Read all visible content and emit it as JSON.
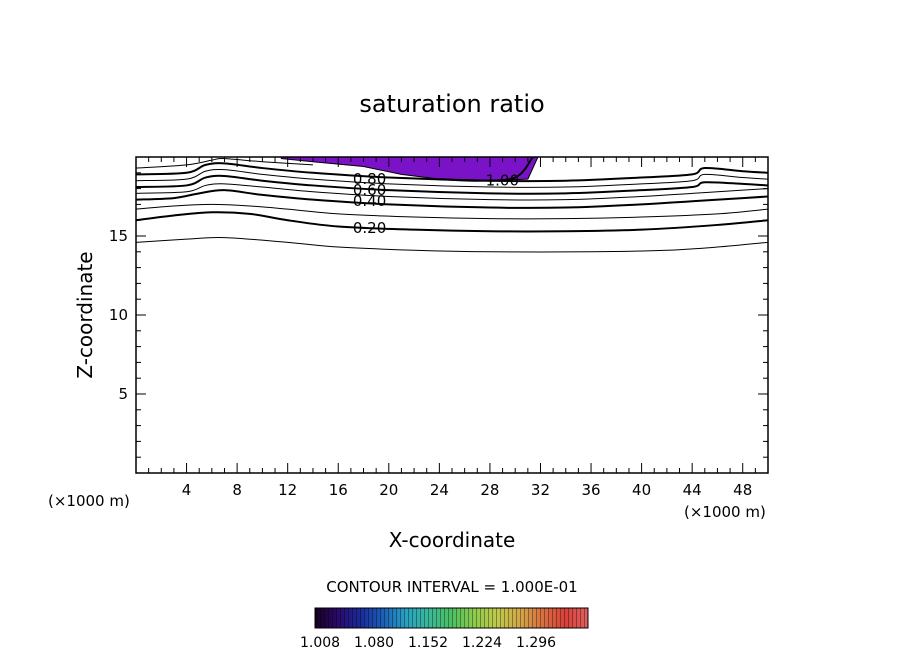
{
  "chart_data": {
    "type": "contour",
    "title": "saturation ratio",
    "xlabel": "X-coordinate",
    "ylabel": "Z-coordinate",
    "x_unit": "(×1000 m)",
    "y_unit": "(×1000 m)",
    "xlim": [
      0,
      50
    ],
    "ylim": [
      0,
      20
    ],
    "x_ticks": [
      4,
      8,
      12,
      16,
      20,
      24,
      28,
      32,
      36,
      40,
      44,
      48
    ],
    "y_ticks": [
      5,
      10,
      15
    ],
    "contour_interval_text": "CONTOUR INTERVAL = 1.000E-01",
    "contour_labels": [
      {
        "text": "0.80",
        "x": 17.0,
        "z": 18.6
      },
      {
        "text": "0.60",
        "x": 17.0,
        "z": 17.9
      },
      {
        "text": "0.40",
        "x": 17.0,
        "z": 17.2
      },
      {
        "text": "0.20",
        "x": 17.0,
        "z": 15.5
      },
      {
        "text": "1.00",
        "x": 27.5,
        "z": 18.5
      }
    ],
    "contours": [
      {
        "level": 0.1,
        "bold": false,
        "points": [
          [
            0,
            14.6
          ],
          [
            4,
            14.8
          ],
          [
            7,
            14.9
          ],
          [
            12,
            14.6
          ],
          [
            16,
            14.3
          ],
          [
            22,
            14.1
          ],
          [
            28,
            14.0
          ],
          [
            36,
            14.0
          ],
          [
            42,
            14.1
          ],
          [
            46,
            14.3
          ],
          [
            50,
            14.6
          ]
        ]
      },
      {
        "level": 0.2,
        "bold": true,
        "points": [
          [
            0,
            16.0
          ],
          [
            3,
            16.3
          ],
          [
            6,
            16.5
          ],
          [
            9,
            16.4
          ],
          [
            12,
            16.0
          ],
          [
            16,
            15.6
          ],
          [
            22,
            15.4
          ],
          [
            28,
            15.3
          ],
          [
            34,
            15.3
          ],
          [
            40,
            15.4
          ],
          [
            46,
            15.7
          ],
          [
            50,
            16.0
          ]
        ]
      },
      {
        "level": 0.3,
        "bold": false,
        "points": [
          [
            0,
            16.7
          ],
          [
            3,
            16.9
          ],
          [
            6,
            17.0
          ],
          [
            9,
            16.9
          ],
          [
            12,
            16.7
          ],
          [
            16,
            16.4
          ],
          [
            22,
            16.2
          ],
          [
            28,
            16.1
          ],
          [
            34,
            16.1
          ],
          [
            40,
            16.2
          ],
          [
            46,
            16.4
          ],
          [
            50,
            16.7
          ]
        ]
      },
      {
        "level": 0.4,
        "bold": true,
        "points": [
          [
            0,
            17.3
          ],
          [
            3,
            17.4
          ],
          [
            5,
            17.7
          ],
          [
            7,
            17.9
          ],
          [
            10,
            17.6
          ],
          [
            14,
            17.3
          ],
          [
            20,
            17.0
          ],
          [
            28,
            16.8
          ],
          [
            34,
            16.8
          ],
          [
            40,
            17.0
          ],
          [
            44,
            17.2
          ],
          [
            48,
            17.4
          ],
          [
            50,
            17.5
          ]
        ]
      },
      {
        "level": 0.5,
        "bold": false,
        "points": [
          [
            0,
            17.7
          ],
          [
            4,
            17.8
          ],
          [
            5.5,
            18.2
          ],
          [
            7,
            18.3
          ],
          [
            10,
            18.1
          ],
          [
            14,
            17.8
          ],
          [
            20,
            17.5
          ],
          [
            28,
            17.3
          ],
          [
            34,
            17.3
          ],
          [
            40,
            17.5
          ],
          [
            44,
            17.7
          ],
          [
            48,
            17.9
          ],
          [
            50,
            18.0
          ]
        ]
      },
      {
        "level": 0.6,
        "bold": true,
        "points": [
          [
            0,
            18.1
          ],
          [
            4,
            18.2
          ],
          [
            5.5,
            18.7
          ],
          [
            7,
            18.8
          ],
          [
            10,
            18.5
          ],
          [
            14,
            18.2
          ],
          [
            20,
            17.9
          ],
          [
            28,
            17.7
          ],
          [
            34,
            17.7
          ],
          [
            40,
            17.9
          ],
          [
            44,
            18.1
          ],
          [
            45,
            18.4
          ],
          [
            48,
            18.3
          ],
          [
            50,
            18.2
          ]
        ]
      },
      {
        "level": 0.7,
        "bold": false,
        "points": [
          [
            0,
            18.5
          ],
          [
            4,
            18.6
          ],
          [
            5.5,
            19.1
          ],
          [
            7,
            19.2
          ],
          [
            10,
            18.9
          ],
          [
            14,
            18.6
          ],
          [
            20,
            18.3
          ],
          [
            28,
            18.1
          ],
          [
            34,
            18.1
          ],
          [
            40,
            18.3
          ],
          [
            44,
            18.5
          ],
          [
            45,
            18.9
          ],
          [
            48,
            18.7
          ],
          [
            50,
            18.6
          ]
        ]
      },
      {
        "level": 0.8,
        "bold": true,
        "points": [
          [
            0,
            18.9
          ],
          [
            4,
            19.0
          ],
          [
            5.5,
            19.5
          ],
          [
            7,
            19.6
          ],
          [
            10,
            19.3
          ],
          [
            14,
            19.0
          ],
          [
            20,
            18.7
          ],
          [
            28,
            18.5
          ],
          [
            34,
            18.5
          ],
          [
            40,
            18.7
          ],
          [
            44,
            18.9
          ],
          [
            45,
            19.3
          ],
          [
            48,
            19.1
          ],
          [
            50,
            19.0
          ]
        ]
      },
      {
        "level": 0.9,
        "bold": false,
        "points": [
          [
            0,
            19.3
          ],
          [
            4,
            19.5
          ],
          [
            6,
            19.8
          ],
          [
            7,
            19.9
          ],
          [
            10,
            19.7
          ],
          [
            14,
            19.5
          ]
        ]
      },
      {
        "level": 1.0,
        "bold": true,
        "points": [
          [
            24,
            18.6
          ],
          [
            27,
            18.5
          ],
          [
            30,
            18.7
          ],
          [
            31.4,
            20.0
          ]
        ]
      }
    ],
    "shaded_region": {
      "color": "#7a12c8",
      "points": [
        [
          11.5,
          20
        ],
        [
          31.8,
          20
        ],
        [
          31.0,
          18.6
        ],
        [
          28,
          18.5
        ],
        [
          24,
          18.6
        ],
        [
          21,
          18.9
        ],
        [
          18,
          19.4
        ],
        [
          14,
          19.7
        ],
        [
          11.5,
          19.9
        ]
      ]
    },
    "colorbar": {
      "tick_labels": [
        "1.008",
        "1.080",
        "1.152",
        "1.224",
        "1.296"
      ],
      "colors": [
        "#180020",
        "#2a0a6a",
        "#1a2a9a",
        "#1a60b8",
        "#2aa0c0",
        "#3ab89a",
        "#4cc060",
        "#8ccc4c",
        "#c0c84c",
        "#d0a848",
        "#d87040",
        "#d84038",
        "#e06060"
      ]
    }
  }
}
